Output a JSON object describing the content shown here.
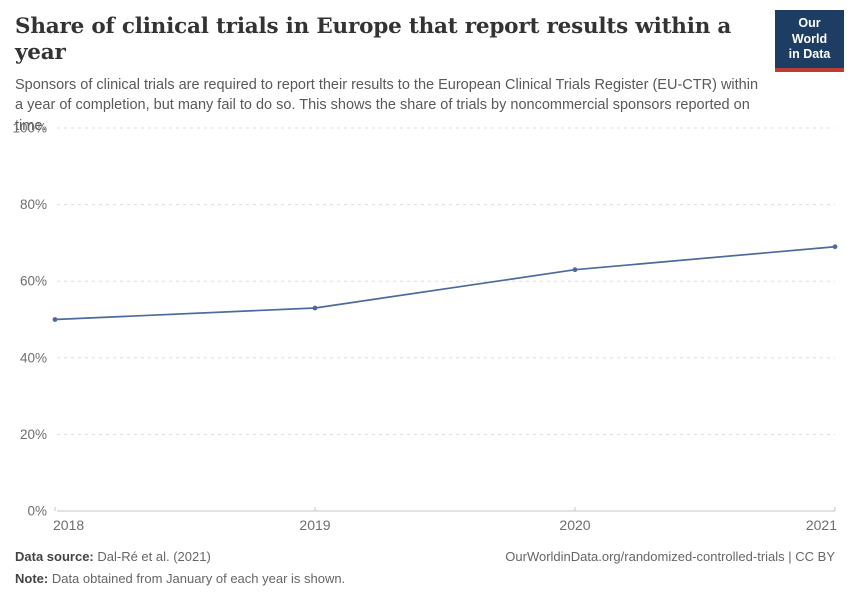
{
  "header": {
    "title": "Share of clinical trials in Europe that report results within a year",
    "subtitle": "Sponsors of clinical trials are required to report their results to the European Clinical Trials Register (EU-CTR) within a year of completion, but many fail to do so. This shows the share of trials by noncommercial sponsors reported on time.",
    "logo_line1": "Our World",
    "logo_line2": "in Data"
  },
  "chart_data": {
    "type": "line",
    "title": "Share of clinical trials in Europe that report results within a year",
    "x": [
      2018,
      2019,
      2020,
      2021
    ],
    "series": [
      {
        "name": "Share of trials by noncommercial sponsors reported on time",
        "values": [
          50,
          53,
          63,
          69
        ]
      }
    ],
    "xlabel": "",
    "ylabel": "",
    "ylim": [
      0,
      100
    ],
    "yticks": [
      0,
      20,
      40,
      60,
      80,
      100
    ],
    "ytick_suffix": "%",
    "xtick_labels": [
      "2018",
      "2019",
      "2020",
      "2021"
    ],
    "grid": "horizontal-dashed",
    "legend": "none",
    "line_color": "#4c6a9c",
    "marker": "dot"
  },
  "footer": {
    "source_label": "Data source:",
    "source_value": " Dal-Ré et al. (2021)",
    "note_label": "Note:",
    "note_value": " Data obtained from January of each year is shown.",
    "link": "OurWorldinData.org/randomized-controlled-trials | CC BY"
  },
  "colors": {
    "line": "#4c6a9c",
    "grid": "#dddddd",
    "axis": "#c6c6c6",
    "tick_text": "#6e6e6e",
    "logo_bg": "#1d3d63",
    "logo_accent": "#bc3d33"
  }
}
